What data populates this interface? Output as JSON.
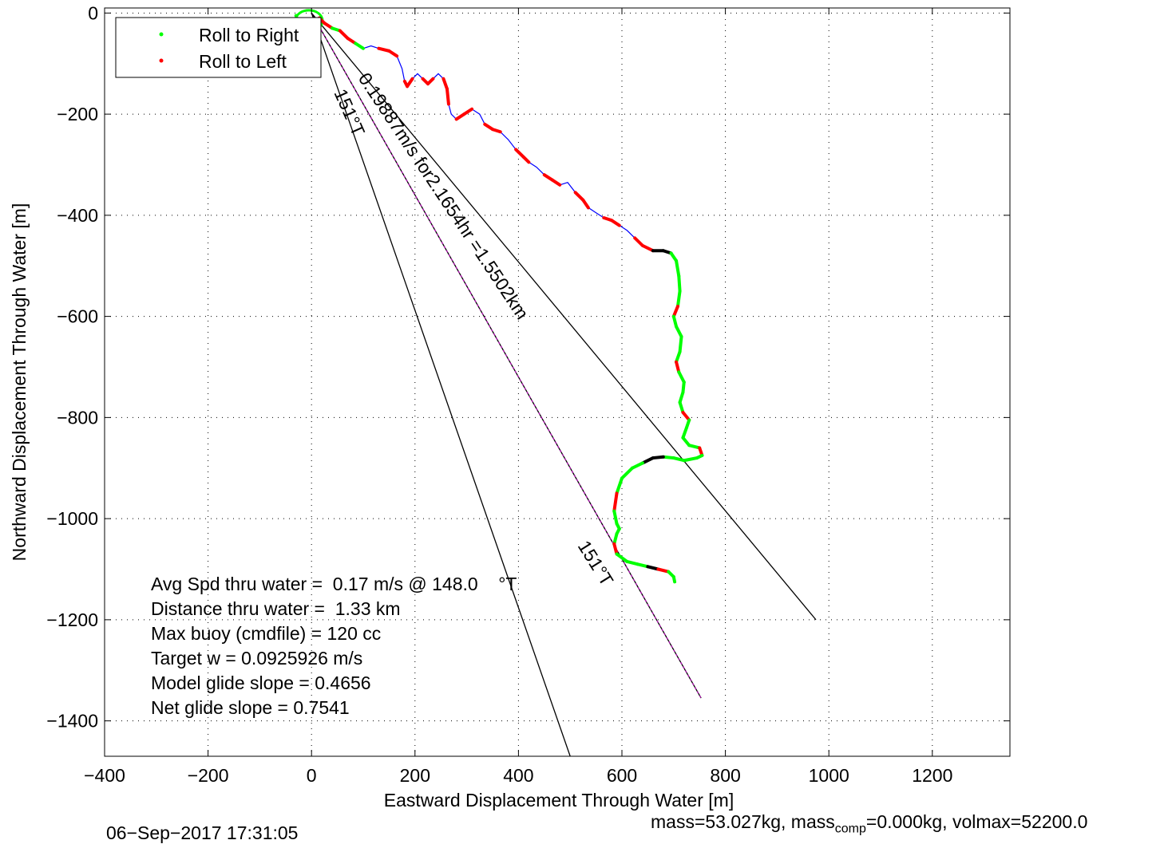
{
  "chart_data": {
    "type": "line",
    "xlabel": "Eastward Displacement Through Water [m]",
    "ylabel": "Northward Displacement Through Water [m]",
    "xlim": [
      -400,
      1350
    ],
    "ylim": [
      -1470,
      10
    ],
    "xticks": [
      -400,
      -200,
      0,
      200,
      400,
      600,
      800,
      1000,
      1200
    ],
    "yticks": [
      0,
      -200,
      -400,
      -600,
      -800,
      -1000,
      -1200,
      -1400
    ],
    "grid": true,
    "legend": {
      "placement": "top-left",
      "entries": [
        {
          "label": "Roll to Right",
          "color": "#00ff00"
        },
        {
          "label": "Roll to Left",
          "color": "#ff0000"
        }
      ]
    },
    "colors": {
      "track": "#0000ff",
      "roll_right": "#00ff00",
      "roll_left": "#ff0000",
      "other": "#000000",
      "heading_line": "#000000",
      "mid_line": "#cc00cc"
    },
    "track": {
      "x": [
        -30,
        -25,
        -10,
        5,
        15,
        25,
        40,
        55,
        70,
        85,
        100,
        115,
        130,
        150,
        165,
        175,
        180,
        185,
        195,
        205,
        215,
        225,
        235,
        245,
        255,
        262,
        265,
        270,
        280,
        295,
        310,
        325,
        335,
        350,
        365,
        380,
        395,
        410,
        420,
        435,
        450,
        465,
        480,
        495,
        510,
        525,
        535,
        550,
        565,
        580,
        595,
        610,
        625,
        640,
        660,
        680,
        695,
        705,
        710,
        712,
        708,
        700,
        705,
        715,
        712,
        705,
        710,
        720,
        718,
        712,
        718,
        730,
        725,
        718,
        730,
        750,
        755,
        745,
        720,
        700,
        680,
        660,
        640,
        620,
        600,
        590,
        585,
        590,
        595,
        590,
        585,
        590,
        610,
        630,
        650,
        670,
        690,
        700,
        702
      ],
      "y": [
        -5,
        -25,
        -30,
        -20,
        -10,
        -20,
        -30,
        -35,
        -50,
        -60,
        -70,
        -65,
        -70,
        -75,
        -85,
        -110,
        -135,
        -145,
        -130,
        -120,
        -130,
        -140,
        -130,
        -120,
        -130,
        -150,
        -180,
        -200,
        -210,
        -200,
        -190,
        -200,
        -220,
        -230,
        -235,
        -250,
        -270,
        -285,
        -295,
        -305,
        -320,
        -330,
        -340,
        -335,
        -355,
        -370,
        -385,
        -395,
        -405,
        -410,
        -420,
        -430,
        -445,
        -460,
        -470,
        -470,
        -475,
        -490,
        -520,
        -550,
        -580,
        -600,
        -620,
        -640,
        -670,
        -690,
        -710,
        -730,
        -750,
        -770,
        -790,
        -805,
        -820,
        -840,
        -855,
        -860,
        -875,
        -880,
        -885,
        -880,
        -878,
        -880,
        -890,
        -900,
        -920,
        -950,
        -985,
        -1010,
        -1020,
        -1030,
        -1050,
        -1070,
        -1085,
        -1090,
        -1095,
        -1100,
        -1105,
        -1115,
        -1125
      ]
    },
    "heading_lines": [
      {
        "x": [
          0,
          975
        ],
        "y": [
          0,
          -1200
        ]
      },
      {
        "x": [
          0,
          753
        ],
        "y": [
          0,
          -1355
        ]
      },
      {
        "x": [
          0,
          500
        ],
        "y": [
          0,
          -1470
        ]
      }
    ],
    "annotations": {
      "line_upper": "0.19887m/s for2.1654hr =1.5502km",
      "line_left": "151°T",
      "line_mid": "151°T"
    },
    "stats": [
      "Avg Spd thru water =  0.17 m/s @ 148.0    °T",
      "Distance thru water =  1.33 km",
      "Max buoy (cmdfile) = 120 cc",
      "Target w = 0.0925926 m/s",
      "Model glide slope = 0.4656",
      "Net glide slope = 0.7541"
    ]
  },
  "footer": {
    "timestamp": "06−Sep−2017 17:31:05",
    "mass_text": "mass=53.027kg, mass",
    "mass_sub": "comp",
    "mass_rest": "=0.000kg, volmax=52200.0"
  }
}
